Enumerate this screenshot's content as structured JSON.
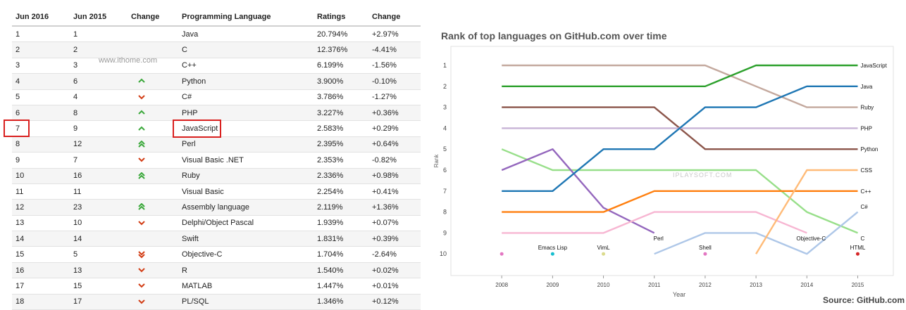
{
  "table": {
    "headers": [
      "Jun 2016",
      "Jun 2015",
      "Change",
      "Programming Language",
      "Ratings",
      "Change"
    ],
    "rows": [
      {
        "r2016": "1",
        "r2015": "1",
        "trend": "none",
        "lang": "Java",
        "rating": "20.794%",
        "change": "+2.97%"
      },
      {
        "r2016": "2",
        "r2015": "2",
        "trend": "none",
        "lang": "C",
        "rating": "12.376%",
        "change": "-4.41%"
      },
      {
        "r2016": "3",
        "r2015": "3",
        "trend": "none",
        "lang": "C++",
        "rating": "6.199%",
        "change": "-1.56%"
      },
      {
        "r2016": "4",
        "r2015": "6",
        "trend": "up",
        "lang": "Python",
        "rating": "3.900%",
        "change": "-0.10%"
      },
      {
        "r2016": "5",
        "r2015": "4",
        "trend": "down",
        "lang": "C#",
        "rating": "3.786%",
        "change": "-1.27%"
      },
      {
        "r2016": "6",
        "r2015": "8",
        "trend": "up",
        "lang": "PHP",
        "rating": "3.227%",
        "change": "+0.36%"
      },
      {
        "r2016": "7",
        "r2015": "9",
        "trend": "up",
        "lang": "JavaScript",
        "rating": "2.583%",
        "change": "+0.29%"
      },
      {
        "r2016": "8",
        "r2015": "12",
        "trend": "up2",
        "lang": "Perl",
        "rating": "2.395%",
        "change": "+0.64%"
      },
      {
        "r2016": "9",
        "r2015": "7",
        "trend": "down",
        "lang": "Visual Basic .NET",
        "rating": "2.353%",
        "change": "-0.82%"
      },
      {
        "r2016": "10",
        "r2015": "16",
        "trend": "up2",
        "lang": "Ruby",
        "rating": "2.336%",
        "change": "+0.98%"
      },
      {
        "r2016": "11",
        "r2015": "11",
        "trend": "none",
        "lang": "Visual Basic",
        "rating": "2.254%",
        "change": "+0.41%"
      },
      {
        "r2016": "12",
        "r2015": "23",
        "trend": "up2",
        "lang": "Assembly language",
        "rating": "2.119%",
        "change": "+1.36%"
      },
      {
        "r2016": "13",
        "r2015": "10",
        "trend": "down",
        "lang": "Delphi/Object Pascal",
        "rating": "1.939%",
        "change": "+0.07%"
      },
      {
        "r2016": "14",
        "r2015": "14",
        "trend": "none",
        "lang": "Swift",
        "rating": "1.831%",
        "change": "+0.39%"
      },
      {
        "r2016": "15",
        "r2015": "5",
        "trend": "down2",
        "lang": "Objective-C",
        "rating": "1.704%",
        "change": "-2.64%"
      },
      {
        "r2016": "16",
        "r2015": "13",
        "trend": "down",
        "lang": "R",
        "rating": "1.540%",
        "change": "+0.02%"
      },
      {
        "r2016": "17",
        "r2015": "15",
        "trend": "down",
        "lang": "MATLAB",
        "rating": "1.447%",
        "change": "+0.01%"
      },
      {
        "r2016": "18",
        "r2015": "17",
        "trend": "down",
        "lang": "PL/SQL",
        "rating": "1.346%",
        "change": "+0.12%"
      }
    ],
    "highlighted_row": "7"
  },
  "watermarks": {
    "left": "www.ithome.com",
    "right": "IPLAYSOFT.COM"
  },
  "colors": {
    "up": "#3aa83a",
    "down": "#d23c14",
    "highlight": "#d9201f"
  },
  "chart_data": {
    "type": "line",
    "title": "Rank of top languages on GitHub.com over time",
    "source": "Source: GitHub.com",
    "xlabel": "Year",
    "ylabel": "Rank",
    "x": [
      2008,
      2009,
      2010,
      2011,
      2012,
      2013,
      2014,
      2015
    ],
    "ylim": [
      10,
      1
    ],
    "y_ticks": [
      1,
      2,
      3,
      4,
      5,
      6,
      7,
      8,
      9,
      10
    ],
    "series": [
      {
        "name": "Ruby",
        "color": "#c4a99e",
        "x": [
          2008,
          2009,
          2010,
          2011,
          2012,
          2013,
          2014,
          2015
        ],
        "y": [
          1,
          1,
          1,
          1,
          1,
          2,
          3,
          3
        ]
      },
      {
        "name": "JavaScript",
        "color": "#2ca02c",
        "x": [
          2008,
          2009,
          2010,
          2011,
          2012,
          2013,
          2014,
          2015
        ],
        "y": [
          2,
          2,
          2,
          2,
          2,
          1,
          1,
          1
        ]
      },
      {
        "name": "Python",
        "color": "#8c564b",
        "x": [
          2008,
          2009,
          2010,
          2011,
          2012,
          2013,
          2014,
          2015
        ],
        "y": [
          3,
          3,
          3,
          3,
          5,
          5,
          5,
          5
        ]
      },
      {
        "name": "PHP",
        "color": "#c8b4d6",
        "x": [
          2008,
          2009,
          2010,
          2011,
          2012,
          2013,
          2014,
          2015
        ],
        "y": [
          4,
          4,
          4,
          4,
          4,
          4,
          4,
          4
        ]
      },
      {
        "name": "C",
        "color": "#98df8a",
        "x": [
          2008,
          2009,
          2010,
          2011,
          2012,
          2013,
          2014,
          2015
        ],
        "y": [
          5,
          6,
          6,
          6,
          6,
          6,
          8,
          9
        ]
      },
      {
        "name": "Perl",
        "color": "#9467bd",
        "x": [
          2008,
          2009,
          2010,
          2011
        ],
        "y": [
          6,
          5,
          7.8,
          9
        ]
      },
      {
        "name": "Java",
        "color": "#1f77b4",
        "x": [
          2008,
          2009,
          2010,
          2011,
          2012,
          2013,
          2014,
          2015
        ],
        "y": [
          7,
          7,
          5,
          5,
          3,
          3,
          2,
          2
        ]
      },
      {
        "name": "C++",
        "color": "#ff7f0e",
        "x": [
          2008,
          2009,
          2010,
          2011,
          2012,
          2013,
          2014,
          2015
        ],
        "y": [
          8,
          8,
          8,
          7,
          7,
          7,
          7,
          7
        ]
      },
      {
        "name": "Objective-C",
        "color": "#f7b6d2",
        "x": [
          2008,
          2009,
          2010,
          2011,
          2012,
          2013,
          2014
        ],
        "y": [
          9,
          9,
          9,
          8,
          8,
          8,
          9
        ]
      },
      {
        "name": "Shell",
        "color": "#aec7e8",
        "x": [
          2011,
          2012,
          2013,
          2014,
          2015
        ],
        "y": [
          10,
          9,
          9,
          10,
          8
        ]
      },
      {
        "name": "CSS",
        "color": "#ffbb78",
        "x": [
          2013,
          2014,
          2015
        ],
        "y": [
          10,
          6,
          6
        ]
      }
    ],
    "line_labels": [
      {
        "text": "JavaScript",
        "x": 2015,
        "y": 1
      },
      {
        "text": "Java",
        "x": 2015,
        "y": 2
      },
      {
        "text": "Ruby",
        "x": 2015,
        "y": 3
      },
      {
        "text": "PHP",
        "x": 2015,
        "y": 4
      },
      {
        "text": "Python",
        "x": 2015,
        "y": 5
      },
      {
        "text": "CSS",
        "x": 2015,
        "y": 6
      },
      {
        "text": "C++",
        "x": 2015,
        "y": 7
      },
      {
        "text": "C#",
        "x": 2015,
        "y": 7.75
      },
      {
        "text": "C",
        "x": 2015,
        "y": 9.25
      },
      {
        "text": "Perl",
        "x": 2011,
        "y": 9.25
      },
      {
        "text": "Objective-C",
        "x": 2014,
        "y": 9.25
      }
    ],
    "points": [
      {
        "name": "Emacs Lisp",
        "x": 2009,
        "y": 10,
        "color": "#17becf"
      },
      {
        "name": "VimL",
        "x": 2010,
        "y": 10,
        "color": "#dbdb8d"
      },
      {
        "name": "Shell",
        "x": 2012,
        "y": 10,
        "color": "#e377c2"
      },
      {
        "name": "HTML",
        "x": 2015,
        "y": 10,
        "color": "#d62728"
      },
      {
        "name": "",
        "x": 2008,
        "y": 10,
        "color": "#e377c2"
      }
    ]
  }
}
